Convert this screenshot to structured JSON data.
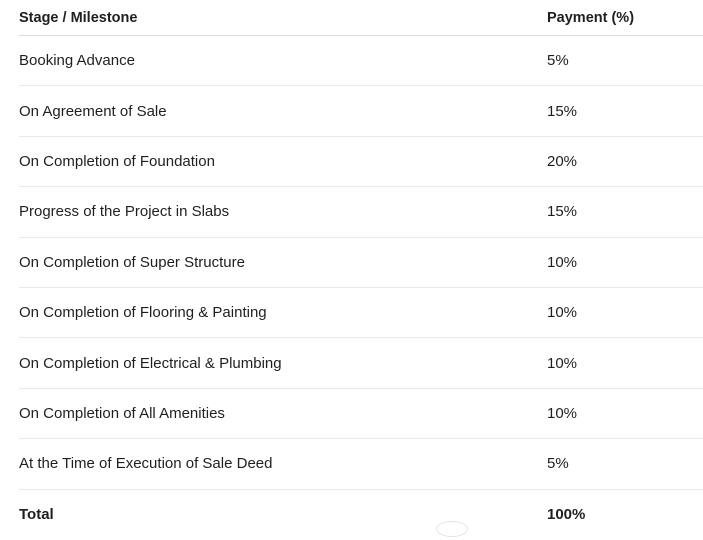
{
  "table": {
    "headers": {
      "stage": "Stage / Milestone",
      "payment": "Payment (%)"
    },
    "rows": [
      {
        "stage": "Booking Advance",
        "payment": "5%"
      },
      {
        "stage": "On Agreement of Sale",
        "payment": "15%"
      },
      {
        "stage": "On Completion of Foundation",
        "payment": "20%"
      },
      {
        "stage": "Progress of the Project in Slabs",
        "payment": "15%"
      },
      {
        "stage": "On Completion of Super Structure",
        "payment": "10%"
      },
      {
        "stage": "On Completion of Flooring & Painting",
        "payment": "10%"
      },
      {
        "stage": "On Completion of Electrical & Plumbing",
        "payment": "10%"
      },
      {
        "stage": "On Completion of All Amenities",
        "payment": "10%"
      },
      {
        "stage": "At the Time of Execution of Sale Deed",
        "payment": "5%"
      }
    ],
    "total": {
      "stage": "Total",
      "payment": "100%"
    }
  }
}
